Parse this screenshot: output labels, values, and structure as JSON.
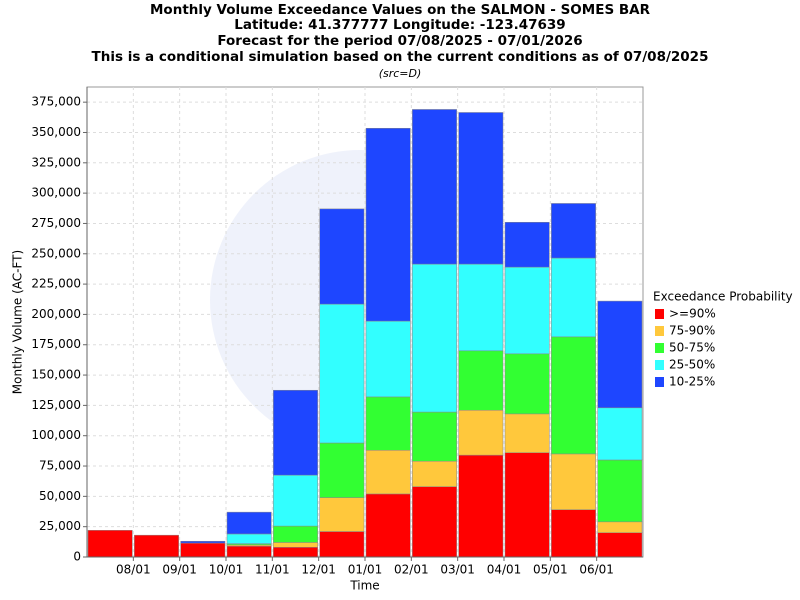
{
  "chart_data": {
    "type": "stacked_bar",
    "title": "Monthly Volume Exceedance Values on the SALMON - SOMES BAR",
    "subtitle_lines": [
      "Latitude: 41.377777 Longitude: -123.47639",
      "Forecast for the period 07/08/2025 - 07/01/2026",
      "This is a conditional simulation based on the current conditions as of 07/08/2025"
    ],
    "source": "(src=D)",
    "x_label": "Time",
    "y_label": "Monthly Volume (AC-FT)",
    "legend_title": "Exceedance Probability",
    "legend": "right",
    "grid": true,
    "categories": [
      null,
      "08/01",
      "09/01",
      "10/01",
      "11/01",
      "12/01",
      "01/01",
      "02/01",
      "03/01",
      "04/01",
      "05/01",
      "06/01"
    ],
    "series": [
      {
        "name": ">=90%",
        "color": "#ff0000",
        "values": [
          22000,
          18000,
          11500,
          9000,
          8000,
          21000,
          52000,
          58000,
          84000,
          86000,
          39000,
          20000
        ]
      },
      {
        "name": "75-90%",
        "color": "#ffc83c",
        "values": [
          0,
          0,
          0,
          1000,
          4000,
          28000,
          36000,
          21000,
          37000,
          32000,
          46000,
          9000
        ]
      },
      {
        "name": "50-75%",
        "color": "#32ff32",
        "values": [
          0,
          0,
          0,
          1000,
          13500,
          45000,
          44000,
          40500,
          49000,
          49500,
          96500,
          51000
        ]
      },
      {
        "name": "25-50%",
        "color": "#32ffff",
        "values": [
          0,
          0,
          0,
          8000,
          42000,
          114500,
          62500,
          122000,
          71500,
          71500,
          65000,
          43000
        ]
      },
      {
        "name": "10-25%",
        "color": "#1e46ff",
        "values": [
          0,
          0,
          1500,
          18000,
          70000,
          78500,
          159000,
          127500,
          125000,
          37000,
          45000,
          88000
        ]
      }
    ],
    "ylim": [
      0,
      387500
    ],
    "yticks": [
      0,
      {
        "value": 25000,
        "label": "25,000"
      },
      {
        "value": 50000,
        "label": "50,000"
      },
      {
        "value": 75000,
        "label": "75,000"
      },
      {
        "value": 100000,
        "label": "100,000"
      },
      {
        "value": 125000,
        "label": "125,000"
      },
      {
        "value": 150000,
        "label": "150,000"
      },
      {
        "value": 175000,
        "label": "175,000"
      },
      {
        "value": 200000,
        "label": "200,000"
      },
      {
        "value": 225000,
        "label": "225,000"
      },
      {
        "value": 250000,
        "label": "250,000"
      },
      {
        "value": 275000,
        "label": "275,000"
      },
      {
        "value": 300000,
        "label": "300,000"
      },
      {
        "value": 325000,
        "label": "325,000"
      },
      {
        "value": 350000,
        "label": "350,000"
      },
      {
        "value": 375000,
        "label": "375,000"
      }
    ]
  }
}
